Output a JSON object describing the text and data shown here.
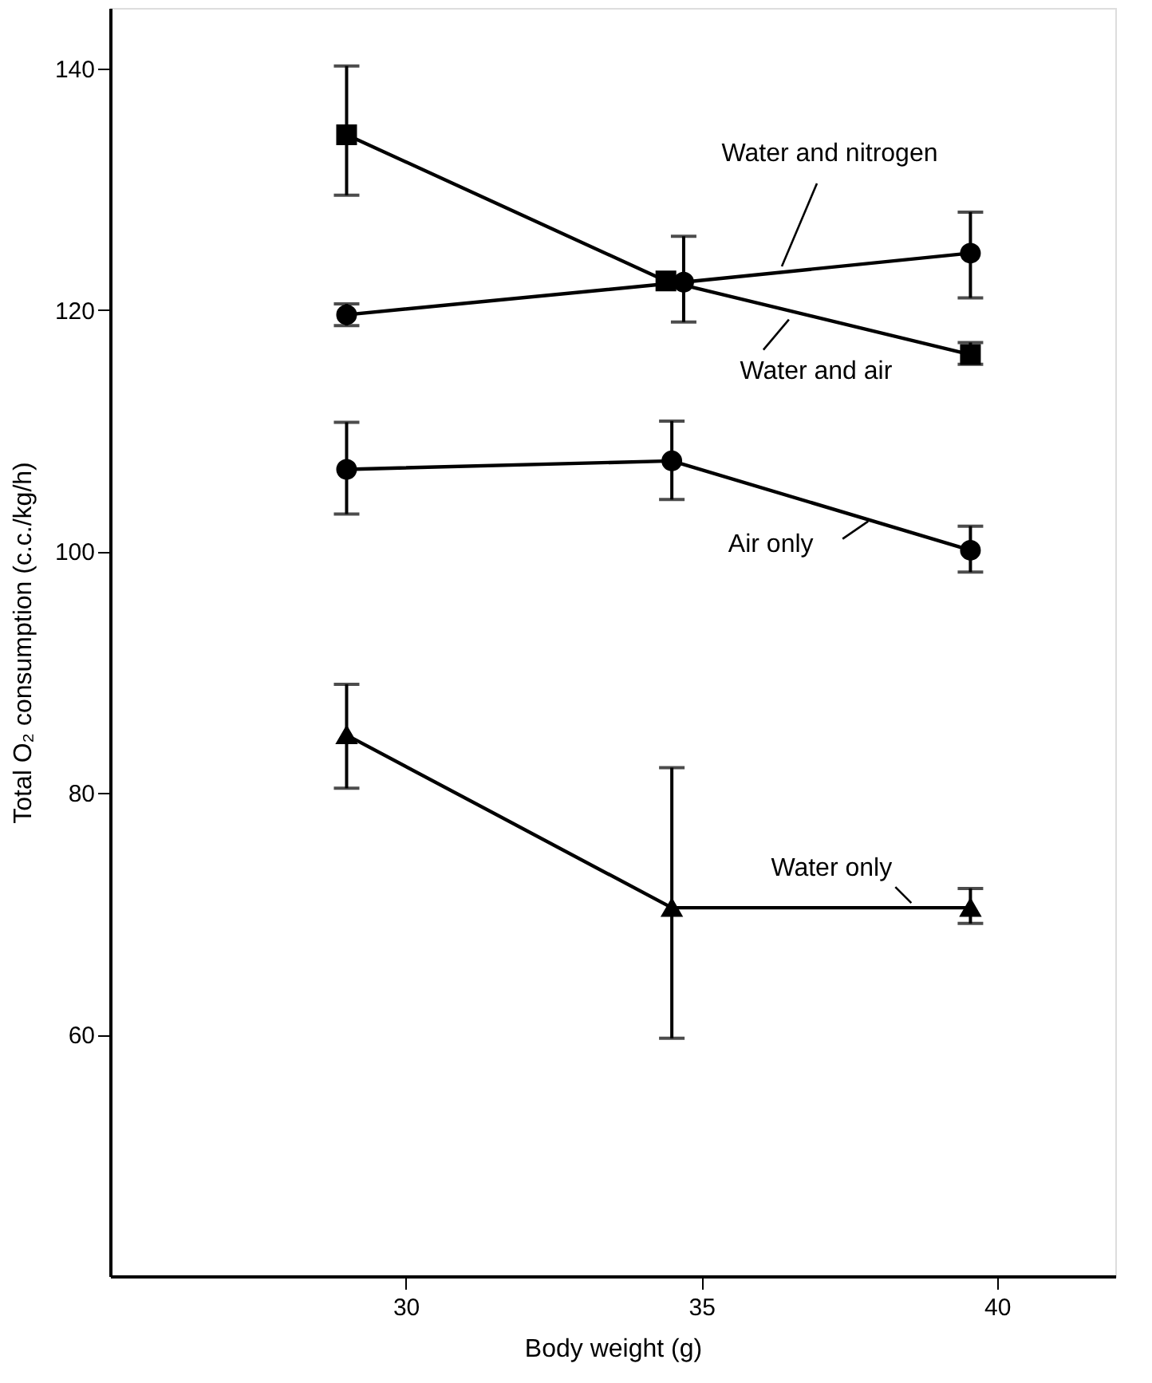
{
  "chart_data": {
    "type": "line",
    "xlabel": "Body weight (g)",
    "ylabel": "Total O₂ consumption (c.c./kg/h)",
    "xlim": [
      25,
      42
    ],
    "xticks": [
      30,
      35,
      40
    ],
    "ylim": [
      40,
      145
    ],
    "yticks": [
      60,
      80,
      100,
      120,
      140
    ],
    "grid": false,
    "line_style": "solid",
    "series": [
      {
        "color": "#000000",
        "marker": "square",
        "x": [
          29,
          34.4,
          39.55
        ],
        "values": [
          134.5,
          122.4,
          116.3
        ],
        "errors": [
          [
            129.5,
            140.2
          ],
          null,
          [
            115.5,
            117.3
          ]
        ]
      },
      {
        "color": "#000000",
        "marker": "circle",
        "x": [
          29,
          34.7,
          39.55
        ],
        "values": [
          119.6,
          122.3,
          124.7
        ],
        "errors": [
          [
            118.7,
            120.5
          ],
          [
            119.0,
            126.1
          ],
          [
            121.0,
            128.1
          ]
        ]
      },
      {
        "color": "#000000",
        "marker": "circle",
        "x": [
          29,
          34.5,
          39.55
        ],
        "values": [
          106.8,
          107.5,
          100.1
        ],
        "errors": [
          [
            103.1,
            110.7
          ],
          [
            104.3,
            110.8
          ],
          [
            98.3,
            102.1
          ]
        ]
      },
      {
        "color": "#000000",
        "marker": "triangle",
        "x": [
          29,
          34.5,
          39.55
        ],
        "values": [
          84.8,
          70.5,
          70.5
        ],
        "errors": [
          [
            80.4,
            89.0
          ],
          [
            59.7,
            82.1
          ],
          [
            69.2,
            72.1
          ]
        ]
      }
    ],
    "annotations": [
      {
        "text": "Water and nitrogen",
        "x": 36.36,
        "y": 123.6
      },
      {
        "text": "Water and air",
        "x": 36.48,
        "y": 119.2
      },
      {
        "text": "Air only",
        "x": 37.82,
        "y": 102.5
      },
      {
        "text": "Water only",
        "x": 38.55,
        "y": 70.9
      }
    ]
  }
}
